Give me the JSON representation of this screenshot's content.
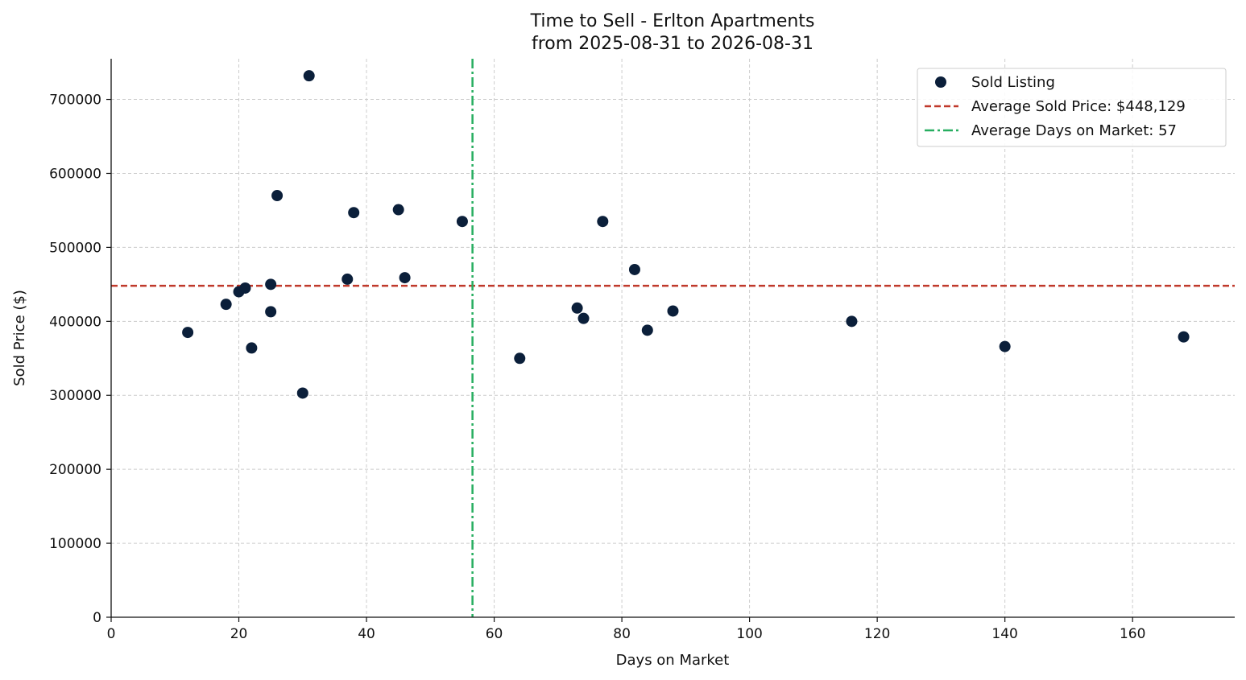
{
  "chart_data": {
    "type": "scatter",
    "title": [
      "Time to Sell - Erlton Apartments",
      "from 2025-08-31 to 2026-08-31"
    ],
    "xlabel": "Days on Market",
    "ylabel": "Sold Price ($)",
    "xlim": [
      0,
      176
    ],
    "ylim": [
      0,
      755000
    ],
    "xticks": [
      0,
      20,
      40,
      60,
      80,
      100,
      120,
      140,
      160
    ],
    "yticks": [
      0,
      100000,
      200000,
      300000,
      400000,
      500000,
      600000,
      700000
    ],
    "grid": true,
    "legend_position": "top-right",
    "colors": {
      "points": "#0b1f3a",
      "avg_price_line": "#c0392b",
      "avg_days_line": "#27ae60"
    },
    "series": [
      {
        "name": "Sold Listing",
        "points": [
          {
            "x": 12,
            "y": 385000
          },
          {
            "x": 18,
            "y": 423000
          },
          {
            "x": 20,
            "y": 440000
          },
          {
            "x": 21,
            "y": 445000
          },
          {
            "x": 22,
            "y": 364000
          },
          {
            "x": 25,
            "y": 450000
          },
          {
            "x": 25,
            "y": 413000
          },
          {
            "x": 26,
            "y": 570000
          },
          {
            "x": 30,
            "y": 303000
          },
          {
            "x": 31,
            "y": 732000
          },
          {
            "x": 37,
            "y": 457000
          },
          {
            "x": 38,
            "y": 547000
          },
          {
            "x": 45,
            "y": 551000
          },
          {
            "x": 46,
            "y": 459000
          },
          {
            "x": 55,
            "y": 535000
          },
          {
            "x": 64,
            "y": 350000
          },
          {
            "x": 73,
            "y": 418000
          },
          {
            "x": 74,
            "y": 404000
          },
          {
            "x": 77,
            "y": 535000
          },
          {
            "x": 82,
            "y": 470000
          },
          {
            "x": 84,
            "y": 388000
          },
          {
            "x": 88,
            "y": 414000
          },
          {
            "x": 116,
            "y": 400000
          },
          {
            "x": 140,
            "y": 366000
          },
          {
            "x": 168,
            "y": 379000
          }
        ]
      }
    ],
    "reference_lines": [
      {
        "name": "Average Sold Price: $448,129",
        "orientation": "horizontal",
        "value": 448129,
        "style": "dashed"
      },
      {
        "name": "Average Days on Market: 57",
        "orientation": "vertical",
        "value": 56.6,
        "style": "dashdot"
      }
    ]
  }
}
